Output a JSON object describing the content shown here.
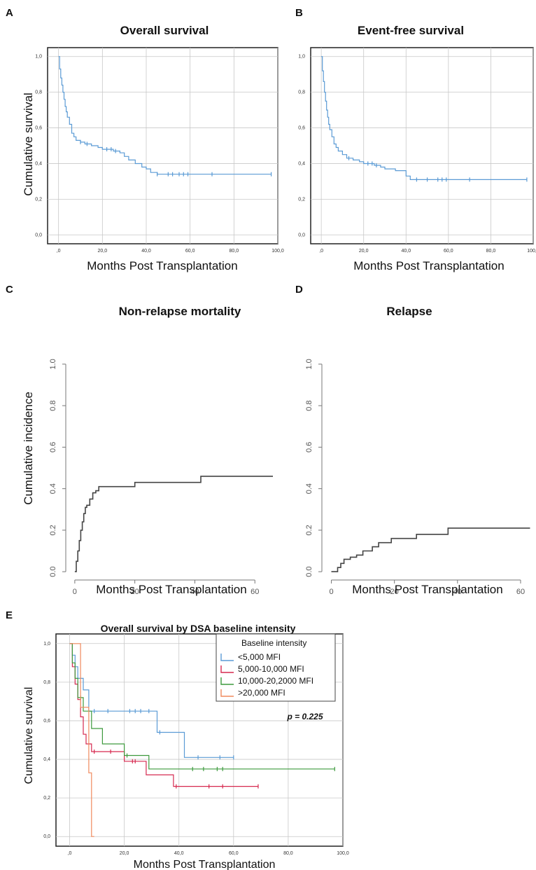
{
  "panels": {
    "A": {
      "letter": "A",
      "title": "Overall survival",
      "xlabel": "Months Post Transplantation",
      "ylabel": "Cumulative survival"
    },
    "B": {
      "letter": "B",
      "title": "Event-free survival",
      "xlabel": "Months Post Transplantation",
      "ylabel": ""
    },
    "C": {
      "letter": "C",
      "title": "Non-relapse mortality",
      "xlabel": "Months Post Transplantation",
      "ylabel": "Cumulative incidence"
    },
    "D": {
      "letter": "D",
      "title": "Relapse",
      "xlabel": "Months Post Transplantation",
      "ylabel": ""
    },
    "E": {
      "letter": "E",
      "title": "Overall survival by DSA baseline intensity",
      "xlabel": "Months Post Transplantation",
      "ylabel": "Cumulative survival",
      "legend_title": "Baseline intensity",
      "pvalue": "p = 0.225"
    }
  },
  "chart_data": [
    {
      "id": "A",
      "type": "line",
      "title": "Overall survival",
      "xlabel": "Months Post Transplantation",
      "ylabel": "Cumulative survival",
      "xlim": [
        -5,
        100
      ],
      "ylim": [
        -0.05,
        1.05
      ],
      "xticks": [
        0,
        20,
        40,
        60,
        80,
        100
      ],
      "xtick_labels": [
        ",0",
        "20,0",
        "40,0",
        "60,0",
        "80,0",
        "100,0"
      ],
      "yticks": [
        0,
        0.2,
        0.4,
        0.6,
        0.8,
        1.0
      ],
      "ytick_labels": [
        "0,0",
        "0,2",
        "0,4",
        "0,6",
        "0,8",
        "1,0"
      ],
      "grid": true,
      "color": "#5b9bd5",
      "series": [
        {
          "x": [
            0,
            0.5,
            1,
            1.5,
            2,
            2.5,
            3,
            3.5,
            4,
            5,
            6,
            7,
            8,
            10,
            12,
            15,
            18,
            20,
            25,
            28,
            30,
            32,
            35,
            38,
            40,
            42,
            45,
            50,
            55,
            60,
            70,
            97
          ],
          "y": [
            1.0,
            0.93,
            0.88,
            0.84,
            0.8,
            0.76,
            0.72,
            0.69,
            0.66,
            0.62,
            0.57,
            0.55,
            0.53,
            0.52,
            0.51,
            0.5,
            0.49,
            0.48,
            0.47,
            0.46,
            0.44,
            0.42,
            0.4,
            0.38,
            0.37,
            0.35,
            0.34,
            0.34,
            0.34,
            0.34,
            0.34,
            0.34
          ],
          "censored": [
            10,
            13,
            22,
            24,
            26,
            45,
            50,
            52,
            55,
            57,
            59,
            70,
            97
          ]
        }
      ]
    },
    {
      "id": "B",
      "type": "line",
      "title": "Event-free survival",
      "xlabel": "Months Post Transplantation",
      "xlim": [
        -5,
        100
      ],
      "ylim": [
        -0.05,
        1.05
      ],
      "xticks": [
        0,
        20,
        40,
        60,
        80,
        100
      ],
      "xtick_labels": [
        ",0",
        "20,0",
        "40,0",
        "60,0",
        "80,0",
        "100,0"
      ],
      "yticks": [
        0,
        0.2,
        0.4,
        0.6,
        0.8,
        1.0
      ],
      "ytick_labels": [
        "0,0",
        "0,2",
        "0,4",
        "0,6",
        "0,8",
        "1,0"
      ],
      "grid": true,
      "color": "#5b9bd5",
      "series": [
        {
          "x": [
            0,
            0.5,
            1,
            1.5,
            2,
            2.5,
            3,
            3.5,
            4,
            5,
            6,
            7,
            8,
            10,
            12,
            15,
            18,
            20,
            25,
            28,
            30,
            35,
            40,
            42,
            45,
            50,
            55,
            60,
            70,
            97
          ],
          "y": [
            1.0,
            0.92,
            0.86,
            0.8,
            0.75,
            0.7,
            0.66,
            0.62,
            0.59,
            0.55,
            0.51,
            0.49,
            0.47,
            0.45,
            0.43,
            0.42,
            0.41,
            0.4,
            0.39,
            0.38,
            0.37,
            0.36,
            0.33,
            0.31,
            0.31,
            0.31,
            0.31,
            0.31,
            0.31,
            0.31
          ],
          "censored": [
            13,
            22,
            24,
            26,
            45,
            50,
            55,
            57,
            59,
            70,
            97
          ]
        }
      ]
    },
    {
      "id": "C",
      "type": "line",
      "title": "Non-relapse mortality",
      "xlabel": "Months Post Transplantation",
      "ylabel": "Cumulative incidence",
      "xlim": [
        -3,
        66
      ],
      "ylim": [
        -0.04,
        1.04
      ],
      "xticks": [
        0,
        20,
        40,
        60
      ],
      "xtick_labels": [
        "0",
        "20",
        "40",
        "60"
      ],
      "yticks": [
        0,
        0.2,
        0.4,
        0.6,
        0.8,
        1.0
      ],
      "ytick_labels": [
        "0.0",
        "0.2",
        "0.4",
        "0.6",
        "0.8",
        "1.0"
      ],
      "grid": false,
      "color": "#444444",
      "series": [
        {
          "x": [
            0,
            0.5,
            1,
            1.5,
            2,
            2.5,
            3,
            3.5,
            4,
            5,
            6,
            7,
            8,
            20,
            42,
            66
          ],
          "y": [
            0,
            0.05,
            0.1,
            0.15,
            0.2,
            0.24,
            0.28,
            0.31,
            0.32,
            0.35,
            0.38,
            0.39,
            0.41,
            0.43,
            0.46,
            0.46
          ]
        }
      ]
    },
    {
      "id": "D",
      "type": "line",
      "title": "Relapse",
      "xlabel": "Months Post Transplantation",
      "xlim": [
        -3,
        64
      ],
      "ylim": [
        -0.04,
        1.04
      ],
      "xticks": [
        0,
        20,
        40,
        60
      ],
      "xtick_labels": [
        "0",
        "20",
        "40",
        "60"
      ],
      "yticks": [
        0,
        0.2,
        0.4,
        0.6,
        0.8,
        1.0
      ],
      "ytick_labels": [
        "0.0",
        "0.2",
        "0.4",
        "0.6",
        "0.8",
        "1.0"
      ],
      "grid": false,
      "color": "#444444",
      "series": [
        {
          "x": [
            0,
            2,
            3,
            4,
            6,
            8,
            10,
            13,
            15,
            19,
            27,
            37,
            63
          ],
          "y": [
            0,
            0.02,
            0.04,
            0.06,
            0.07,
            0.08,
            0.1,
            0.12,
            0.14,
            0.16,
            0.18,
            0.21,
            0.21
          ]
        }
      ]
    },
    {
      "id": "E",
      "type": "line",
      "title": "Overall survival by DSA baseline intensity",
      "xlabel": "Months Post Transplantation",
      "ylabel": "Cumulative survival",
      "xlim": [
        -5,
        100
      ],
      "ylim": [
        -0.05,
        1.05
      ],
      "xticks": [
        0,
        20,
        40,
        60,
        80,
        100
      ],
      "xtick_labels": [
        ",0",
        "20,0",
        "40,0",
        "60,0",
        "80,0",
        "100,0"
      ],
      "yticks": [
        0,
        0.2,
        0.4,
        0.6,
        0.8,
        1.0
      ],
      "ytick_labels": [
        "0,0",
        "0,2",
        "0,4",
        "0,6",
        "0,8",
        "1,0"
      ],
      "grid": true,
      "legend": "top-right",
      "annotation": "p = 0.225",
      "series": [
        {
          "name": "<5,000 MFI",
          "color": "#5b9bd5",
          "x": [
            0,
            1,
            2,
            3,
            5,
            7,
            32,
            42,
            43,
            60
          ],
          "y": [
            1.0,
            0.94,
            0.88,
            0.82,
            0.76,
            0.65,
            0.54,
            0.41,
            0.41,
            0.41
          ],
          "censored": [
            9,
            14,
            22,
            24,
            26,
            29,
            33,
            47,
            55,
            60
          ]
        },
        {
          "name": "5,000-10,000 MFI",
          "color": "#d6294f",
          "x": [
            0,
            1,
            2,
            3,
            4,
            5,
            6,
            8,
            10,
            20,
            28,
            38,
            69
          ],
          "y": [
            1.0,
            0.88,
            0.79,
            0.71,
            0.62,
            0.53,
            0.48,
            0.44,
            0.44,
            0.39,
            0.32,
            0.26,
            0.26
          ],
          "censored": [
            9,
            15,
            23,
            24,
            39,
            51,
            56,
            69
          ]
        },
        {
          "name": "10,000-20,2000 MFI",
          "color": "#3d9a3d",
          "x": [
            0,
            1,
            2,
            3,
            5,
            8,
            12,
            20,
            29,
            97
          ],
          "y": [
            1.0,
            0.9,
            0.82,
            0.72,
            0.65,
            0.56,
            0.48,
            0.42,
            0.35,
            0.35
          ],
          "censored": [
            4,
            21,
            45,
            49,
            54,
            56,
            97
          ]
        },
        {
          "name": ">20,000 MFI",
          "color": "#f08a5d",
          "x": [
            0,
            4,
            7,
            8,
            9
          ],
          "y": [
            1.0,
            0.67,
            0.33,
            0.0,
            0.0
          ],
          "censored": []
        }
      ]
    }
  ]
}
